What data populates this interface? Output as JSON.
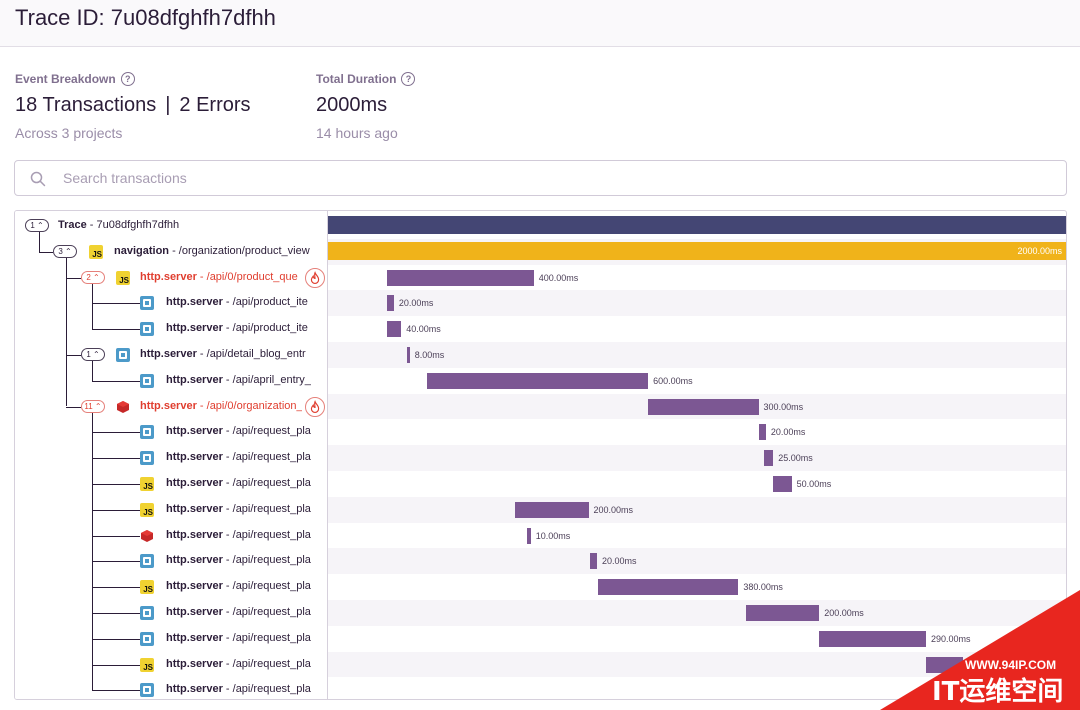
{
  "page": {
    "title": "Trace ID: 7u08dfghfh7dfhh"
  },
  "event_breakdown": {
    "label": "Event Breakdown",
    "help_icon": "question-icon",
    "transactions": "18 Transactions",
    "separator": "|",
    "errors": "2 Errors",
    "projects": "Across 3 projects"
  },
  "total_duration": {
    "label": "Total Duration",
    "help_icon": "question-icon",
    "value": "2000ms",
    "ago": "14 hours ago"
  },
  "search": {
    "placeholder": "Search transactions",
    "value": ""
  },
  "colors": {
    "root_bar": "#444674",
    "navigation_bar": "#f0b31a",
    "span_bar": "#7c5793",
    "error_text": "#e03e2f",
    "alt_row": "#f6f4f8"
  },
  "trace": {
    "total_ms": 2000,
    "rows": [
      {
        "depth": 0,
        "toggle": "1",
        "icon": "",
        "op": "Trace",
        "desc": " - 7u08dfghfh7dfhh",
        "error": false,
        "start_ms": 0,
        "dur_ms": 2000,
        "label": "",
        "bar": "root"
      },
      {
        "depth": 1,
        "toggle": "3",
        "icon": "js-icon",
        "op": "navigation",
        "desc": " - /organization/product_view",
        "error": false,
        "start_ms": 0,
        "dur_ms": 2000,
        "label": "2000.00ms",
        "bar": "navigation"
      },
      {
        "depth": 2,
        "toggle": "2",
        "icon": "js-icon",
        "op": "http.server",
        "desc": " - /api/0/product_que",
        "error": true,
        "start_ms": 159,
        "dur_ms": 400,
        "label": "400.00ms",
        "bar": "span"
      },
      {
        "depth": 3,
        "toggle": "",
        "icon": "python-icon",
        "op": "http.server",
        "desc": " - /api/product_ite",
        "error": false,
        "start_ms": 159,
        "dur_ms": 20,
        "label": "20.00ms",
        "bar": "span"
      },
      {
        "depth": 3,
        "toggle": "",
        "icon": "python-icon",
        "op": "http.server",
        "desc": " - /api/product_ite",
        "error": false,
        "start_ms": 159,
        "dur_ms": 40,
        "label": "40.00ms",
        "bar": "span"
      },
      {
        "depth": 2,
        "toggle": "1",
        "icon": "python-icon",
        "op": "http.server",
        "desc": " - /api/detail_blog_entr",
        "error": false,
        "start_ms": 214,
        "dur_ms": 8,
        "label": "8.00ms",
        "bar": "span"
      },
      {
        "depth": 3,
        "toggle": "",
        "icon": "python-icon",
        "op": "http.server",
        "desc": " - /api/april_entry_",
        "error": false,
        "start_ms": 270,
        "dur_ms": 600,
        "label": "600.00ms",
        "bar": "span"
      },
      {
        "depth": 2,
        "toggle": "11",
        "icon": "ruby-icon",
        "op": "http.server",
        "desc": " - /api/0/organization_",
        "error": true,
        "start_ms": 870,
        "dur_ms": 300,
        "label": "300.00ms",
        "bar": "span"
      },
      {
        "depth": 3,
        "toggle": "",
        "icon": "python-icon",
        "op": "http.server",
        "desc": " - /api/request_pla",
        "error": false,
        "start_ms": 1170,
        "dur_ms": 20,
        "label": "20.00ms",
        "bar": "span"
      },
      {
        "depth": 3,
        "toggle": "",
        "icon": "python-icon",
        "op": "http.server",
        "desc": " - /api/request_pla",
        "error": false,
        "start_ms": 1185,
        "dur_ms": 25,
        "label": "25.00ms",
        "bar": "span"
      },
      {
        "depth": 3,
        "toggle": "",
        "icon": "js-icon",
        "op": "http.server",
        "desc": " - /api/request_pla",
        "error": false,
        "start_ms": 1210,
        "dur_ms": 50,
        "label": "50.00ms",
        "bar": "span"
      },
      {
        "depth": 3,
        "toggle": "",
        "icon": "js-icon",
        "op": "http.server",
        "desc": " - /api/request_pla",
        "error": false,
        "start_ms": 508,
        "dur_ms": 200,
        "label": "200.00ms",
        "bar": "span"
      },
      {
        "depth": 3,
        "toggle": "",
        "icon": "ruby-icon",
        "op": "http.server",
        "desc": " - /api/request_pla",
        "error": false,
        "start_ms": 541,
        "dur_ms": 10,
        "label": "10.00ms",
        "bar": "span"
      },
      {
        "depth": 3,
        "toggle": "",
        "icon": "python-icon",
        "op": "http.server",
        "desc": " - /api/request_pla",
        "error": false,
        "start_ms": 711,
        "dur_ms": 20,
        "label": "20.00ms",
        "bar": "span"
      },
      {
        "depth": 3,
        "toggle": "",
        "icon": "js-icon",
        "op": "http.server",
        "desc": " - /api/request_pla",
        "error": false,
        "start_ms": 735,
        "dur_ms": 380,
        "label": "380.00ms",
        "bar": "span"
      },
      {
        "depth": 3,
        "toggle": "",
        "icon": "python-icon",
        "op": "http.server",
        "desc": " - /api/request_pla",
        "error": false,
        "start_ms": 1135,
        "dur_ms": 200,
        "label": "200.00ms",
        "bar": "span"
      },
      {
        "depth": 3,
        "toggle": "",
        "icon": "python-icon",
        "op": "http.server",
        "desc": " - /api/request_pla",
        "error": false,
        "start_ms": 1335,
        "dur_ms": 290,
        "label": "290.00ms",
        "bar": "span"
      },
      {
        "depth": 3,
        "toggle": "",
        "icon": "js-icon",
        "op": "http.server",
        "desc": " - /api/request_pla",
        "error": false,
        "start_ms": 1625,
        "dur_ms": 100,
        "label": "",
        "bar": "span"
      },
      {
        "depth": 3,
        "toggle": "",
        "icon": "python-icon",
        "op": "http.server",
        "desc": " - /api/request_pla",
        "error": false,
        "start_ms": 1725,
        "dur_ms": 100,
        "label": "",
        "bar": "span"
      }
    ]
  },
  "watermark": {
    "site": "WWW.94IP.COM",
    "brand": "IT运维空间"
  }
}
